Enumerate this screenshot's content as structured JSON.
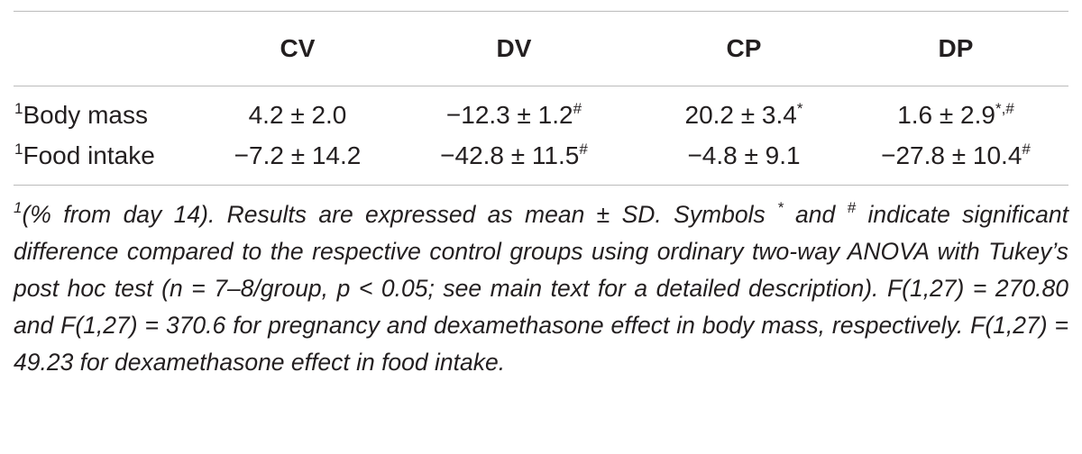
{
  "table": {
    "columns": [
      "CV",
      "DV",
      "CP",
      "DP"
    ],
    "rows": [
      {
        "label_sup": "1",
        "label": "Body mass",
        "cells": [
          {
            "text": "4.2 ± 2.0"
          },
          {
            "text": "−12.3 ± 1.2",
            "sup": "#"
          },
          {
            "text": "20.2 ± 3.4",
            "sup": "*"
          },
          {
            "text": "1.6 ± 2.9",
            "sup": "*,#"
          }
        ]
      },
      {
        "label_sup": "1",
        "label": "Food intake",
        "cells": [
          {
            "text": "−7.2 ± 14.2"
          },
          {
            "text": "−42.8 ± 11.5",
            "sup": "#"
          },
          {
            "text": "−4.8 ± 9.1"
          },
          {
            "text": "−27.8 ± 10.4",
            "sup": "#"
          }
        ]
      }
    ]
  },
  "footnote": {
    "sup": "1",
    "text1": "(% from day 14). Results are expressed as mean ± SD. Symbols ",
    "sup_star": "*",
    "text2": " and ",
    "sup_hash": "#",
    "text3": " indicate significant difference compared to the respective control groups using ordinary two-way ANOVA with Tukey’s post hoc test (n = 7–8/group, p < 0.05; see main text for a detailed description). F(1,27) = 270.80 and F(1,27) = 370.6 for pregnancy and dexamethasone effect in body mass, respectively. F(1,27) = 49.23 for dexamethasone effect in food intake."
  }
}
